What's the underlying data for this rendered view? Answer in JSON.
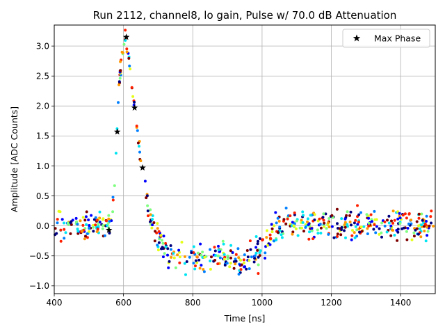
{
  "chart_data": {
    "type": "scatter",
    "title": "Run 2112, channel8, lo gain, Pulse w/ 70.0 dB Attenuation",
    "xlabel": "Time [ns]",
    "ylabel": "Amplitude [ADC Counts]",
    "xlim": [
      400,
      1500
    ],
    "ylim": [
      -1.13,
      3.35
    ],
    "xticks": [
      400,
      600,
      800,
      1000,
      1200,
      1400
    ],
    "yticks": [
      -1.0,
      -0.5,
      0.0,
      0.5,
      1.0,
      1.5,
      2.0,
      2.5,
      3.0
    ],
    "xtick_labels": [
      "400",
      "600",
      "800",
      "1000",
      "1200",
      "1400"
    ],
    "ytick_labels": [
      "−1.0",
      "−0.5",
      "0.0",
      "0.5",
      "1.0",
      "1.5",
      "2.0",
      "2.5",
      "3.0"
    ],
    "grid": true,
    "legend": {
      "placement": "top-right",
      "entries": [
        {
          "label": "Max Phase",
          "marker": "star",
          "color": "#000000"
        }
      ]
    },
    "colormap": "jet",
    "pulse_waveform": {
      "description_points": [
        [
          400,
          0.0
        ],
        [
          550,
          0.0
        ],
        [
          565,
          0.05
        ],
        [
          575,
          0.8
        ],
        [
          585,
          2.1
        ],
        [
          595,
          2.9
        ],
        [
          605,
          3.12
        ],
        [
          615,
          2.8
        ],
        [
          625,
          2.3
        ],
        [
          635,
          1.8
        ],
        [
          645,
          1.3
        ],
        [
          655,
          0.9
        ],
        [
          665,
          0.55
        ],
        [
          680,
          0.1
        ],
        [
          700,
          -0.25
        ],
        [
          730,
          -0.45
        ],
        [
          770,
          -0.52
        ],
        [
          850,
          -0.55
        ],
        [
          950,
          -0.58
        ],
        [
          990,
          -0.5
        ],
        [
          1010,
          -0.3
        ],
        [
          1040,
          -0.05
        ],
        [
          1070,
          0.05
        ],
        [
          1200,
          0.02
        ],
        [
          1500,
          0.02
        ]
      ],
      "noise_sigma": 0.12,
      "points_per_band": 650
    },
    "max_phase_points": [
      {
        "x": 558,
        "y": -0.07
      },
      {
        "x": 582,
        "y": 1.57
      },
      {
        "x": 608,
        "y": 3.15
      },
      {
        "x": 632,
        "y": 1.97
      },
      {
        "x": 655,
        "y": 0.97
      }
    ],
    "sample_colors": [
      "#00007f",
      "#0000ff",
      "#007fff",
      "#00e5f2",
      "#7fff7f",
      "#e5ff19",
      "#ff9900",
      "#ff2000",
      "#7f0000"
    ]
  }
}
